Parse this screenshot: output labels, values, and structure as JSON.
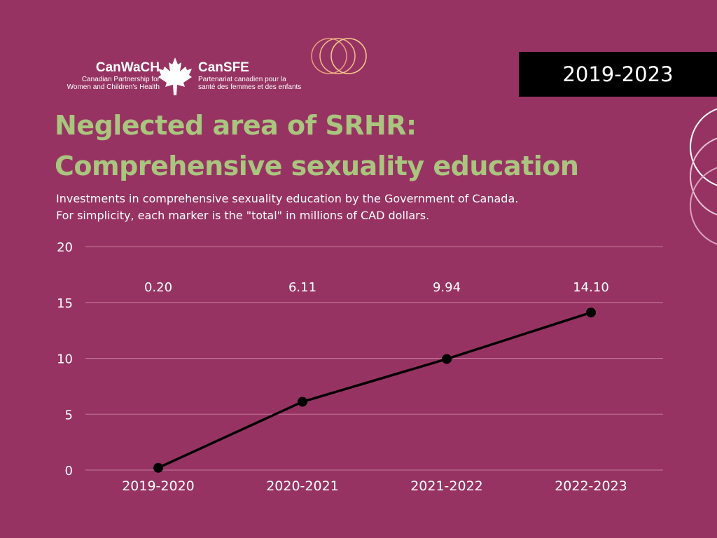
{
  "logo": {
    "en_name": "CanWaCH",
    "en_sub_line1": "Canadian Partnership for",
    "en_sub_line2": "Women and Children's Health",
    "fr_name": "CanSFE",
    "fr_sub_line1": "Partenariat canadien pour la",
    "fr_sub_line2": "santé des femmes et des enfants",
    "icon": "maple-leaf-icon"
  },
  "badge": {
    "year_range": "2019-2023"
  },
  "title_line1": "Neglected area of SRHR:",
  "title_line2": "Comprehensive sexuality education",
  "subtitle_line1": "Investments in comprehensive sexuality education by the Government of Canada.",
  "subtitle_line2": "For simplicity, each marker is the \"total\" in millions of CAD dollars.",
  "colors": {
    "background": "#973362",
    "title": "#a9c57e",
    "line": "#000000",
    "badge": "#000000",
    "grid": "#c0789b"
  },
  "chart_data": {
    "type": "line",
    "title": "",
    "xlabel": "",
    "ylabel": "",
    "categories": [
      "2019-2020",
      "2020-2021",
      "2021-2022",
      "2022-2023"
    ],
    "values": [
      0.2,
      6.11,
      9.94,
      14.1
    ],
    "data_labels": [
      "0.20",
      "6.11",
      "9.94",
      "14.10"
    ],
    "ylim": [
      0,
      20
    ],
    "yticks": [
      0,
      5,
      10,
      15,
      20
    ],
    "grid": true,
    "legend": "none"
  }
}
